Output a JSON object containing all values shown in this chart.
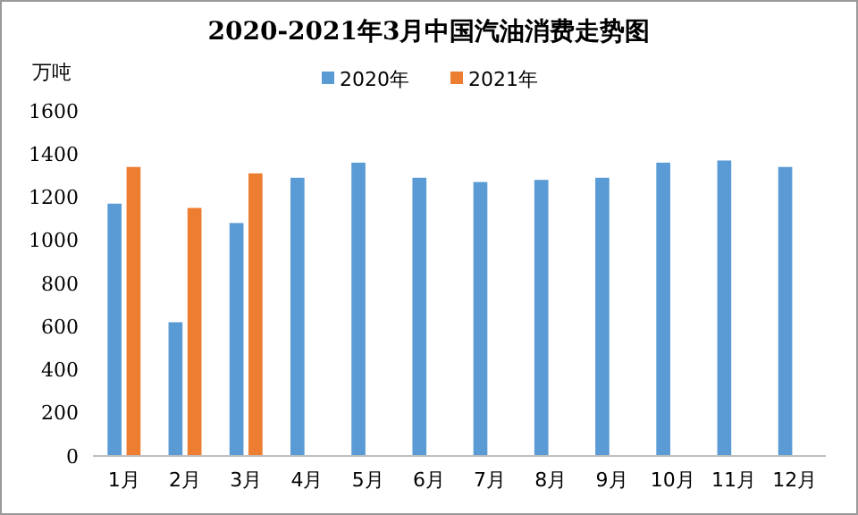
{
  "chart_data": {
    "type": "bar",
    "title": "2020-2021年3月中国汽油消费走势图",
    "ylabel": "万吨",
    "categories": [
      "1月",
      "2月",
      "3月",
      "4月",
      "5月",
      "6月",
      "7月",
      "8月",
      "9月",
      "10月",
      "11月",
      "12月"
    ],
    "series": [
      {
        "name": "2020年",
        "color": "#5b9bd5",
        "values": [
          1170,
          620,
          1080,
          1290,
          1360,
          1290,
          1270,
          1280,
          1290,
          1360,
          1370,
          1340
        ]
      },
      {
        "name": "2021年",
        "color": "#ed7d31",
        "values": [
          1340,
          1150,
          1310,
          null,
          null,
          null,
          null,
          null,
          null,
          null,
          null,
          null
        ]
      }
    ],
    "ylim": [
      0,
      1600
    ],
    "yticks": [
      0,
      200,
      400,
      600,
      800,
      1000,
      1200,
      1400,
      1600
    ],
    "grid": false,
    "legend": "top"
  }
}
